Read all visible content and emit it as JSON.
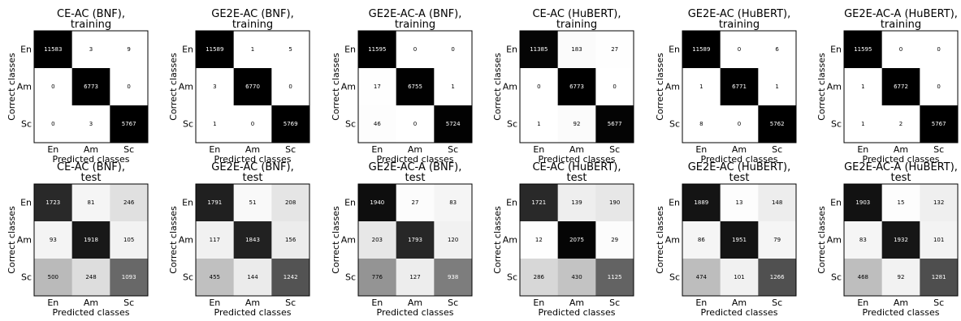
{
  "chart_data": [
    {
      "type": "heatmap",
      "title": "CE-AC (BNF),\ntraining",
      "xlabel": "Predicted classes",
      "ylabel": "Correct classes",
      "x_categories": [
        "En",
        "Am",
        "Sc"
      ],
      "y_categories": [
        "En",
        "Am",
        "Sc"
      ],
      "values": [
        [
          11583,
          3,
          9
        ],
        [
          0,
          6773,
          0
        ],
        [
          0,
          3,
          5767
        ]
      ],
      "colormap": "grayscale, darker = higher row share"
    },
    {
      "type": "heatmap",
      "title": "GE2E-AC (BNF),\ntraining",
      "xlabel": "Predicted classes",
      "ylabel": "Correct classes",
      "x_categories": [
        "En",
        "Am",
        "Sc"
      ],
      "y_categories": [
        "En",
        "Am",
        "Sc"
      ],
      "values": [
        [
          11589,
          1,
          5
        ],
        [
          3,
          6770,
          0
        ],
        [
          1,
          0,
          5769
        ]
      ],
      "colormap": "grayscale, darker = higher row share"
    },
    {
      "type": "heatmap",
      "title": "GE2E-AC-A (BNF),\ntraining",
      "xlabel": "Predicted classes",
      "ylabel": "Correct classes",
      "x_categories": [
        "En",
        "Am",
        "Sc"
      ],
      "y_categories": [
        "En",
        "Am",
        "Sc"
      ],
      "values": [
        [
          11595,
          0,
          0
        ],
        [
          17,
          6755,
          1
        ],
        [
          46,
          0,
          5724
        ]
      ],
      "colormap": "grayscale, darker = higher row share"
    },
    {
      "type": "heatmap",
      "title": "CE-AC (HuBERT),\ntraining",
      "xlabel": "Predicted classes",
      "ylabel": "Correct classes",
      "x_categories": [
        "En",
        "Am",
        "Sc"
      ],
      "y_categories": [
        "En",
        "Am",
        "Sc"
      ],
      "values": [
        [
          11385,
          183,
          27
        ],
        [
          0,
          6773,
          0
        ],
        [
          1,
          92,
          5677
        ]
      ],
      "colormap": "grayscale, darker = higher row share"
    },
    {
      "type": "heatmap",
      "title": "GE2E-AC (HuBERT),\ntraining",
      "xlabel": "Predicted classes",
      "ylabel": "Correct classes",
      "x_categories": [
        "En",
        "Am",
        "Sc"
      ],
      "y_categories": [
        "En",
        "Am",
        "Sc"
      ],
      "values": [
        [
          11589,
          0,
          6
        ],
        [
          1,
          6771,
          1
        ],
        [
          8,
          0,
          5762
        ]
      ],
      "colormap": "grayscale, darker = higher row share"
    },
    {
      "type": "heatmap",
      "title": "GE2E-AC-A (HuBERT),\ntraining",
      "xlabel": "Predicted classes",
      "ylabel": "Correct classes",
      "x_categories": [
        "En",
        "Am",
        "Sc"
      ],
      "y_categories": [
        "En",
        "Am",
        "Sc"
      ],
      "values": [
        [
          11595,
          0,
          0
        ],
        [
          1,
          6772,
          0
        ],
        [
          1,
          2,
          5767
        ]
      ],
      "colormap": "grayscale, darker = higher row share"
    },
    {
      "type": "heatmap",
      "title": "CE-AC (BNF),\ntest",
      "xlabel": "Predicted classes",
      "ylabel": "Correct classes",
      "x_categories": [
        "En",
        "Am",
        "Sc"
      ],
      "y_categories": [
        "En",
        "Am",
        "Sc"
      ],
      "values": [
        [
          1723,
          81,
          246
        ],
        [
          93,
          1918,
          105
        ],
        [
          500,
          248,
          1093
        ]
      ],
      "colormap": "grayscale, darker = higher row share"
    },
    {
      "type": "heatmap",
      "title": "GE2E-AC (BNF),\ntest",
      "xlabel": "Predicted classes",
      "ylabel": "Correct classes",
      "x_categories": [
        "En",
        "Am",
        "Sc"
      ],
      "y_categories": [
        "En",
        "Am",
        "Sc"
      ],
      "values": [
        [
          1791,
          51,
          208
        ],
        [
          117,
          1843,
          156
        ],
        [
          455,
          144,
          1242
        ]
      ],
      "colormap": "grayscale, darker = higher row share"
    },
    {
      "type": "heatmap",
      "title": "GE2E-AC-A (BNF),\ntest",
      "xlabel": "Predicted classes",
      "ylabel": "Correct classes",
      "x_categories": [
        "En",
        "Am",
        "Sc"
      ],
      "y_categories": [
        "En",
        "Am",
        "Sc"
      ],
      "values": [
        [
          1940,
          27,
          83
        ],
        [
          203,
          1793,
          120
        ],
        [
          776,
          127,
          938
        ]
      ],
      "colormap": "grayscale, darker = higher row share"
    },
    {
      "type": "heatmap",
      "title": "CE-AC (HuBERT),\ntest",
      "xlabel": "Predicted classes",
      "ylabel": "Correct classes",
      "x_categories": [
        "En",
        "Am",
        "Sc"
      ],
      "y_categories": [
        "En",
        "Am",
        "Sc"
      ],
      "values": [
        [
          1721,
          139,
          190
        ],
        [
          12,
          2075,
          29
        ],
        [
          286,
          430,
          1125
        ]
      ],
      "colormap": "grayscale, darker = higher row share"
    },
    {
      "type": "heatmap",
      "title": "GE2E-AC (HuBERT),\ntest",
      "xlabel": "Predicted classes",
      "ylabel": "Correct classes",
      "x_categories": [
        "En",
        "Am",
        "Sc"
      ],
      "y_categories": [
        "En",
        "Am",
        "Sc"
      ],
      "values": [
        [
          1889,
          13,
          148
        ],
        [
          86,
          1951,
          79
        ],
        [
          474,
          101,
          1266
        ]
      ],
      "colormap": "grayscale, darker = higher row share"
    },
    {
      "type": "heatmap",
      "title": "GE2E-AC-A (HuBERT),\ntest",
      "xlabel": "Predicted classes",
      "ylabel": "Correct classes",
      "x_categories": [
        "En",
        "Am",
        "Sc"
      ],
      "y_categories": [
        "En",
        "Am",
        "Sc"
      ],
      "values": [
        [
          1903,
          15,
          132
        ],
        [
          83,
          1932,
          101
        ],
        [
          468,
          92,
          1281
        ]
      ],
      "colormap": "grayscale, darker = higher row share"
    }
  ]
}
